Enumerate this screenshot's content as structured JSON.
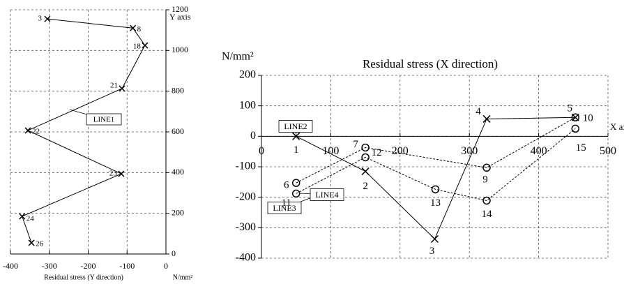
{
  "chart_data": [
    {
      "type": "line",
      "y_label": "Y axis",
      "x_label": "Residual stress (Y direction)",
      "unit": "N/mm²",
      "xlim": [
        -400,
        0
      ],
      "ylim": [
        0,
        1200
      ],
      "xticks": [
        -400,
        -300,
        -200,
        -100,
        0
      ],
      "yticks": [
        0,
        200,
        400,
        600,
        800,
        1000,
        1200
      ],
      "grid": true,
      "series": [
        {
          "name": "LINE1",
          "color": "#000000",
          "marker": "x",
          "dashed": false,
          "x": [
            -305,
            -85,
            -54,
            -113,
            -355,
            -115,
            -370,
            -346
          ],
          "values": [
            1155,
            1110,
            1025,
            813,
            607,
            394,
            185,
            55
          ],
          "point_labels": [
            "3",
            "8",
            "18",
            "21",
            "22",
            "23",
            "24",
            "26"
          ]
        }
      ]
    },
    {
      "type": "line",
      "title": "Residual stress (X direction)",
      "unit": "N/mm²",
      "x_label": "X axis",
      "xlim": [
        0,
        500
      ],
      "ylim": [
        -400,
        200
      ],
      "xticks": [
        0,
        100,
        200,
        300,
        400,
        500
      ],
      "yticks": [
        -400,
        -300,
        -200,
        -100,
        0,
        100,
        200
      ],
      "grid": true,
      "series": [
        {
          "name": "LINE2",
          "color": "#000000",
          "marker": "x",
          "dashed": false,
          "x": [
            50,
            150,
            250,
            325,
            453
          ],
          "values": [
            0,
            -115,
            -337,
            57,
            62
          ],
          "point_labels": [
            "1",
            "2",
            "3",
            "4",
            "5"
          ]
        },
        {
          "name": "LINE3",
          "color": "#000000",
          "marker": "o",
          "dashed": true,
          "x": [
            50,
            150,
            325,
            453
          ],
          "values": [
            -153,
            -37,
            -103,
            62
          ],
          "point_labels": [
            "6",
            "7",
            "9",
            "10"
          ]
        },
        {
          "name": "LINE4",
          "color": "#000000",
          "marker": "o",
          "dashed": true,
          "x": [
            50,
            150,
            251,
            325,
            453
          ],
          "values": [
            -188,
            -69,
            -174,
            -211,
            25
          ],
          "point_labels": [
            "11",
            "12",
            "13",
            "14",
            "15"
          ]
        }
      ]
    }
  ]
}
